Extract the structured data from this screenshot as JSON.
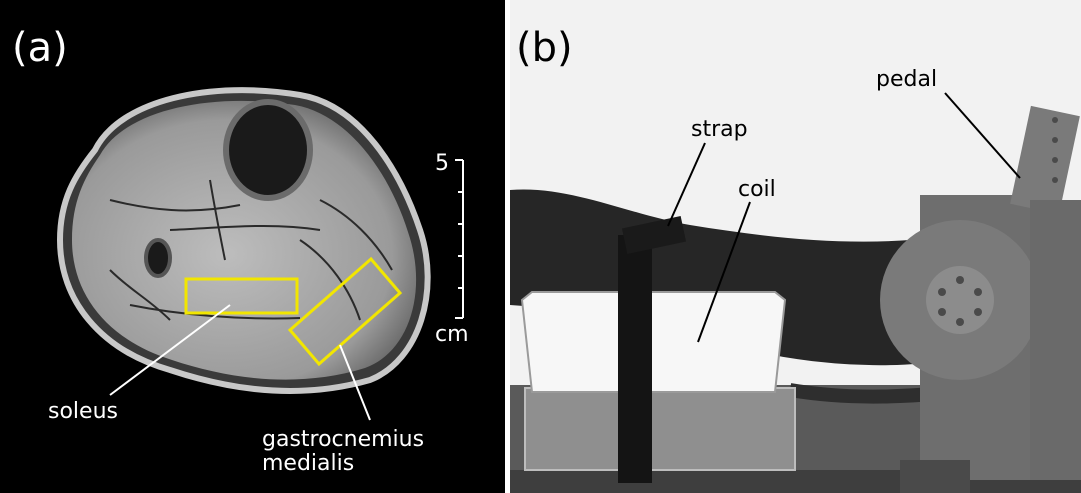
{
  "panel_a": {
    "tag": "(a)",
    "scale": {
      "value": "5",
      "unit": "cm"
    },
    "labels": {
      "soleus": "soleus",
      "gastro_line1": "gastrocnemius",
      "gastro_line2": "medialis"
    },
    "roi_color": "#f2e600"
  },
  "panel_b": {
    "tag": "(b)",
    "labels": {
      "strap": "strap",
      "coil": "coil",
      "pedal": "pedal"
    }
  }
}
